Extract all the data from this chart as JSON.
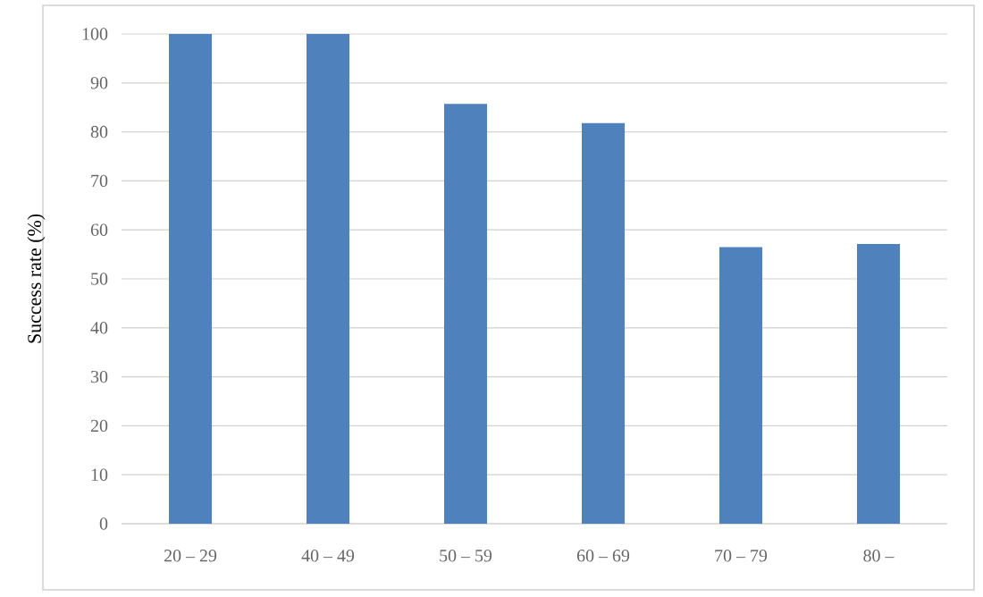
{
  "chart_data": {
    "type": "bar",
    "ylabel": "Success rate (%)",
    "categories": [
      "20 – 29",
      "40 – 49",
      "50 – 59",
      "60 – 69",
      "70 – 79",
      "80 –"
    ],
    "values": [
      100,
      100,
      85.7,
      81.8,
      56.5,
      57.1
    ],
    "color": "#4f81bd",
    "ylim": [
      0,
      100
    ],
    "yticks": [
      0,
      10,
      20,
      30,
      40,
      50,
      60,
      70,
      80,
      90,
      100
    ],
    "grid": "y"
  }
}
